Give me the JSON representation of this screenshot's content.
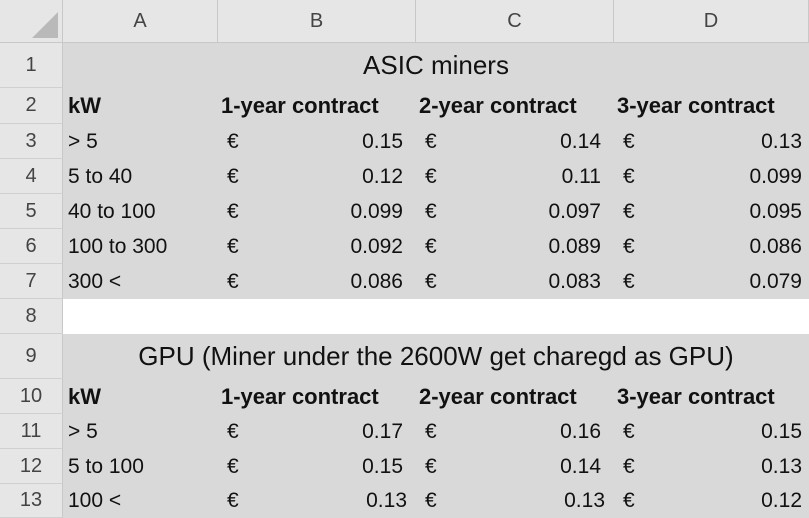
{
  "columns": [
    "A",
    "B",
    "C",
    "D"
  ],
  "rows": [
    "1",
    "2",
    "3",
    "4",
    "5",
    "6",
    "7",
    "8",
    "9",
    "10",
    "11",
    "12",
    "13"
  ],
  "asic": {
    "title": "ASIC miners",
    "headers": [
      "kW",
      "1-year contract",
      "2-year contract",
      "3-year contract"
    ],
    "currency": "€",
    "data": [
      {
        "kw": "> 5",
        "c1": "0.15",
        "c2": "0.14",
        "c3": "0.13"
      },
      {
        "kw": "5 to 40",
        "c1": "0.12",
        "c2": "0.11",
        "c3": "0.099"
      },
      {
        "kw": "40 to 100",
        "c1": "0.099",
        "c2": "0.097",
        "c3": "0.095"
      },
      {
        "kw": "100 to 300",
        "c1": "0.092",
        "c2": "0.089",
        "c3": "0.086"
      },
      {
        "kw": "300 <",
        "c1": "0.086",
        "c2": "0.083",
        "c3": "0.079"
      }
    ]
  },
  "gpu": {
    "title": "GPU (Miner under the 2600W get charegd as GPU)",
    "headers": [
      "kW",
      "1-year contract",
      "2-year contract",
      "3-year contract"
    ],
    "currency": "€",
    "data": [
      {
        "kw": "> 5",
        "c1": "0.17",
        "c2": "0.16",
        "c3": "0.15"
      },
      {
        "kw": "5 to 100",
        "c1": "0.15",
        "c2": "0.14",
        "c3": "0.13"
      },
      {
        "kw": "100 <",
        "c1": "0.13",
        "c2": "0.13",
        "c3": "0.12"
      }
    ]
  },
  "colors": {
    "header_bg": "#e6e6e6",
    "band_bg": "#d9d9d9"
  }
}
